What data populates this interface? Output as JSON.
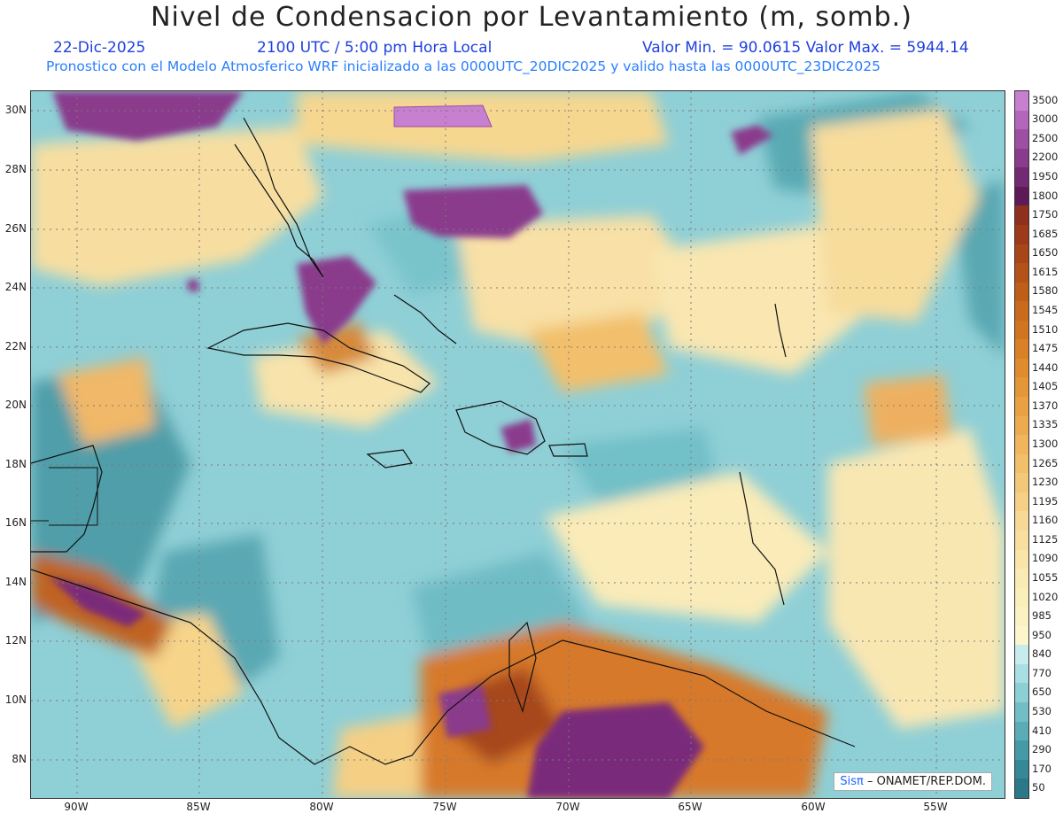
{
  "title": "Nivel de Condensacion por Levantamiento (m, somb.)",
  "info": {
    "date": "22-Dic-2025",
    "time": "2100 UTC / 5:00 pm Hora Local",
    "minmax": "Valor Min. = 90.0615  Valor Max. = 5944.14",
    "forecast": "Pronostico con el Modelo Atmosferico WRF inicializado a las 0000UTC_20DIC2025 y valido hasta las  0000UTC_23DIC2025"
  },
  "latitudes": [
    "30N",
    "28N",
    "26N",
    "24N",
    "22N",
    "20N",
    "18N",
    "16N",
    "14N",
    "12N",
    "10N",
    "8N"
  ],
  "longitudes": [
    "90W",
    "85W",
    "80W",
    "75W",
    "70W",
    "65W",
    "60W",
    "55W"
  ],
  "colorbar": {
    "labels": [
      "3500",
      "3000",
      "2500",
      "2200",
      "1950",
      "1800",
      "1750",
      "1685",
      "1650",
      "1615",
      "1580",
      "1545",
      "1510",
      "1475",
      "1440",
      "1405",
      "1370",
      "1335",
      "1300",
      "1265",
      "1230",
      "1195",
      "1160",
      "1125",
      "1090",
      "1055",
      "1020",
      "985",
      "950",
      "840",
      "770",
      "650",
      "530",
      "410",
      "290",
      "170",
      "50"
    ],
    "colors": [
      "#c77fd0",
      "#b366bb",
      "#9e4ea3",
      "#8a3b8c",
      "#732a72",
      "#5e1a56",
      "#8f2f1e",
      "#9c3a1a",
      "#a8461a",
      "#b45219",
      "#bf5e19",
      "#c96a1c",
      "#d27520",
      "#da8026",
      "#e08b2e",
      "#e59638",
      "#e9a143",
      "#edab50",
      "#f0b55d",
      "#f2bf6b",
      "#f4c879",
      "#f6d087",
      "#f7d894",
      "#f8dfa0",
      "#f9e5aa",
      "#faeab3",
      "#faeeba",
      "#fbf2c2",
      "#fdf6cc",
      "#c8ecee",
      "#a9dfe3",
      "#8ccfd5",
      "#72bec6",
      "#5aacb7",
      "#459aa8",
      "#348898",
      "#2a7888"
    ]
  },
  "credit": {
    "sis": "Sisπ",
    "rest": "– ONAMET/REP.DOM."
  }
}
